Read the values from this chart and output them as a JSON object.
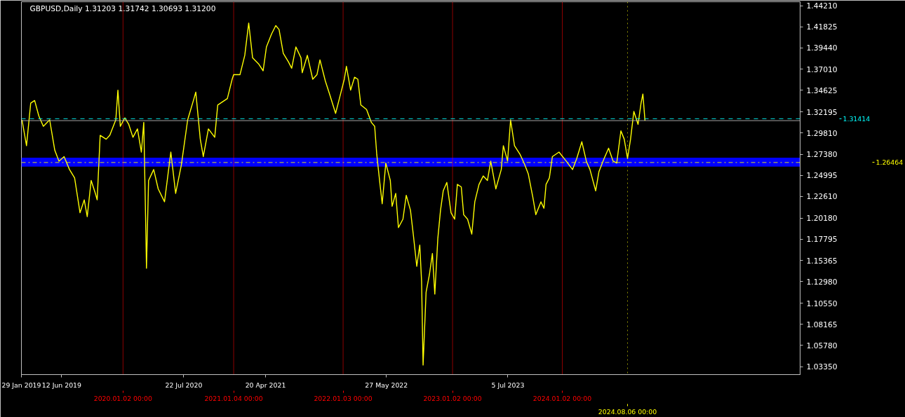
{
  "chart_data": {
    "type": "line",
    "title": "GBPUSD,Daily  1.31203 1.31742 1.30693 1.31200",
    "series": [
      {
        "color": "#ffff00",
        "x": [
          "2019-01-31",
          "2019-02-15",
          "2019-03-01",
          "2019-03-14",
          "2019-03-28",
          "2019-04-12",
          "2019-05-03",
          "2019-05-20",
          "2019-06-03",
          "2019-06-20",
          "2019-07-08",
          "2019-07-25",
          "2019-08-12",
          "2019-08-26",
          "2019-09-05",
          "2019-09-18",
          "2019-10-02",
          "2019-10-08",
          "2019-10-18",
          "2019-11-07",
          "2019-11-19",
          "2019-12-09",
          "2019-12-16",
          "2019-12-24",
          "2020-01-08",
          "2020-01-21",
          "2020-02-04",
          "2020-02-19",
          "2020-03-03",
          "2020-03-11",
          "2020-03-17",
          "2020-03-20",
          "2020-03-27",
          "2020-04-13",
          "2020-04-28",
          "2020-05-19",
          "2020-06-09",
          "2020-06-25",
          "2020-07-14",
          "2020-07-20",
          "2020-08-04",
          "2020-08-25",
          "2020-08-31",
          "2020-09-15",
          "2020-09-25",
          "2020-10-12",
          "2020-11-02",
          "2020-11-12",
          "2020-12-14",
          "2020-12-30",
          "2021-01-04",
          "2021-01-25",
          "2021-02-10",
          "2021-02-23",
          "2021-03-08",
          "2021-03-29",
          "2021-04-12",
          "2021-04-23",
          "2021-05-10",
          "2021-05-24",
          "2021-06-04",
          "2021-06-18",
          "2021-07-05",
          "2021-07-16",
          "2021-07-30",
          "2021-08-16",
          "2021-08-20",
          "2021-09-06",
          "2021-09-24",
          "2021-10-08",
          "2021-10-18",
          "2021-11-05",
          "2021-11-19",
          "2021-12-09",
          "2021-12-20",
          "2022-01-07",
          "2022-01-14",
          "2022-01-28",
          "2022-02-10",
          "2022-02-21",
          "2022-03-03",
          "2022-03-22",
          "2022-04-07",
          "2022-04-18",
          "2022-04-25",
          "2022-05-05",
          "2022-05-13",
          "2022-05-25",
          "2022-06-09",
          "2022-06-15",
          "2022-06-27",
          "2022-07-06",
          "2022-07-21",
          "2022-08-01",
          "2022-08-15",
          "2022-08-25",
          "2022-09-05",
          "2022-09-15",
          "2022-09-21",
          "2022-09-26",
          "2022-10-06",
          "2022-10-17",
          "2022-10-27",
          "2022-11-04",
          "2022-11-14",
          "2022-11-23",
          "2022-12-02",
          "2022-12-14",
          "2022-12-28",
          "2023-01-09",
          "2023-01-18",
          "2023-01-31",
          "2023-02-08",
          "2023-02-21",
          "2023-03-07",
          "2023-03-17",
          "2023-03-31",
          "2023-04-14",
          "2023-04-28",
          "2023-05-09",
          "2023-05-26",
          "2023-06-13",
          "2023-06-20",
          "2023-07-04",
          "2023-07-14",
          "2023-07-27",
          "2023-08-15",
          "2023-08-28",
          "2023-09-11",
          "2023-09-26",
          "2023-10-06",
          "2023-10-23",
          "2023-11-02",
          "2023-11-09",
          "2023-11-20",
          "2023-11-30",
          "2023-12-22",
          "2024-01-15",
          "2024-02-05",
          "2024-02-19",
          "2024-03-07",
          "2024-03-22",
          "2024-04-03",
          "2024-04-22",
          "2024-05-03",
          "2024-05-20",
          "2024-06-04",
          "2024-06-19",
          "2024-07-01",
          "2024-07-15",
          "2024-07-26",
          "2024-08-06",
          "2024-08-16",
          "2024-08-27",
          "2024-09-10",
          "2024-09-20",
          "2024-09-26",
          "2024-10-03"
        ],
        "values": [
          1.3129,
          1.2837,
          1.3319,
          1.3348,
          1.3173,
          1.3056,
          1.3129,
          1.2786,
          1.2662,
          1.2713,
          1.2567,
          1.2472,
          1.2078,
          1.2224,
          1.2034,
          1.2443,
          1.2297,
          1.2224,
          1.2954,
          1.291,
          1.2954,
          1.3129,
          1.3465,
          1.3056,
          1.3151,
          1.3078,
          1.2932,
          1.3027,
          1.2764,
          1.31,
          1.2034,
          1.145,
          1.2443,
          1.2567,
          1.2348,
          1.2202,
          1.2764,
          1.2297,
          1.2618,
          1.2764,
          1.3129,
          1.337,
          1.3443,
          1.291,
          1.2713,
          1.3027,
          1.2932,
          1.3297,
          1.337,
          1.3589,
          1.364,
          1.364,
          1.3859,
          1.4224,
          1.383,
          1.3757,
          1.3684,
          1.3954,
          1.41,
          1.4195,
          1.4151,
          1.3881,
          1.3786,
          1.3713,
          1.3954,
          1.383,
          1.3662,
          1.3859,
          1.3589,
          1.364,
          1.3808,
          1.3567,
          1.3421,
          1.3202,
          1.3348,
          1.3589,
          1.3735,
          1.3465,
          1.3611,
          1.3589,
          1.3297,
          1.3246,
          1.31,
          1.3056,
          1.2735,
          1.2421,
          1.218,
          1.264,
          1.2443,
          1.2151,
          1.2297,
          1.191,
          1.2005,
          1.2275,
          1.2107,
          1.1815,
          1.1472,
          1.1713,
          1.1304,
          1.0355,
          1.118,
          1.1377,
          1.1618,
          1.1158,
          1.1786,
          1.2107,
          1.2326,
          1.2421,
          1.2078,
          1.2005,
          1.2399,
          1.237,
          1.2056,
          1.2005,
          1.1837,
          1.2202,
          1.2399,
          1.2494,
          1.2443,
          1.2662,
          1.2348,
          1.2567,
          1.2837,
          1.2662,
          1.3129,
          1.2837,
          1.2735,
          1.264,
          1.2516,
          1.2253,
          1.2056,
          1.2202,
          1.2129,
          1.2399,
          1.2472,
          1.2713,
          1.2764,
          1.2662,
          1.2567,
          1.2691,
          1.2881,
          1.2662,
          1.2567,
          1.2326,
          1.2545,
          1.2691,
          1.2808,
          1.2662,
          1.264,
          1.3005,
          1.291,
          1.2691,
          1.291,
          1.3224,
          1.3078,
          1.3319,
          1.3421,
          1.312
        ]
      }
    ],
    "xlim": [
      "2019-01-29",
      "2026-03-03"
    ],
    "xticks": [
      {
        "value": "2019-01-29",
        "label": "29 Jan 2019"
      },
      {
        "value": "2019-06-12",
        "label": "12 Jun 2019"
      },
      {
        "value": "2020-07-22",
        "label": "22 Jul 2020"
      },
      {
        "value": "2021-04-20",
        "label": "20 Apr 2021"
      },
      {
        "value": "2022-05-27",
        "label": "27 May 2022"
      },
      {
        "value": "2023-07-05",
        "label": "5 Jul 2023"
      }
    ],
    "ylim": [
      1.0247,
      1.4465
    ],
    "yticks": [
      {
        "value": 1.4421,
        "label": "1.44210"
      },
      {
        "value": 1.41825,
        "label": "1.41825"
      },
      {
        "value": 1.3944,
        "label": "1.39440"
      },
      {
        "value": 1.3701,
        "label": "1.37010"
      },
      {
        "value": 1.34625,
        "label": "1.34625"
      },
      {
        "value": 1.32195,
        "label": "1.32195"
      },
      {
        "value": 1.2981,
        "label": "1.29810"
      },
      {
        "value": 1.2738,
        "label": "1.27380"
      },
      {
        "value": 1.24995,
        "label": "1.24995"
      },
      {
        "value": 1.2261,
        "label": "1.22610"
      },
      {
        "value": 1.2018,
        "label": "1.20180"
      },
      {
        "value": 1.17795,
        "label": "1.17795"
      },
      {
        "value": 1.15365,
        "label": "1.15365"
      },
      {
        "value": 1.1298,
        "label": "1.12980"
      },
      {
        "value": 1.1055,
        "label": "1.10550"
      },
      {
        "value": 1.08165,
        "label": "1.08165"
      },
      {
        "value": 1.0578,
        "label": "1.05780"
      },
      {
        "value": 1.0335,
        "label": "1.03350"
      }
    ],
    "bands": [
      {
        "axis": "y",
        "from": 1.26,
        "to": 1.27,
        "color": "#0000ff"
      }
    ],
    "ref_lines": [
      {
        "axis": "y",
        "value": 1.31414,
        "label": "1.31414",
        "color": "#00ffff",
        "line_style": "dashed"
      },
      {
        "axis": "y",
        "value": 1.312,
        "color": "#c0c0c0",
        "line_style": "solid"
      },
      {
        "axis": "y",
        "value": 1.26464,
        "label": "1.26464",
        "color": "#ffff00",
        "line_style": "dashdot"
      },
      {
        "axis": "x",
        "value": "2020-01-02",
        "label": "2020.01.02 00:00",
        "color": "#ff0000",
        "line_style": "solid"
      },
      {
        "axis": "x",
        "value": "2021-01-04",
        "label": "2021.01.04 00:00",
        "color": "#ff0000",
        "line_style": "solid"
      },
      {
        "axis": "x",
        "value": "2022-01-03",
        "label": "2022.01.03 00:00",
        "color": "#ff0000",
        "line_style": "solid"
      },
      {
        "axis": "x",
        "value": "2023-01-02",
        "label": "2023.01.02 00:00",
        "color": "#ff0000",
        "line_style": "solid"
      },
      {
        "axis": "x",
        "value": "2024-01-02",
        "label": "2024.01.02 00:00",
        "color": "#ff0000",
        "line_style": "solid"
      },
      {
        "axis": "x",
        "value": "2024-08-06",
        "label": "2024.08.06 00:00",
        "color": "#ffff00",
        "line_style": "dotted"
      }
    ],
    "grid": false,
    "marker": "none",
    "line_style": "solid"
  }
}
